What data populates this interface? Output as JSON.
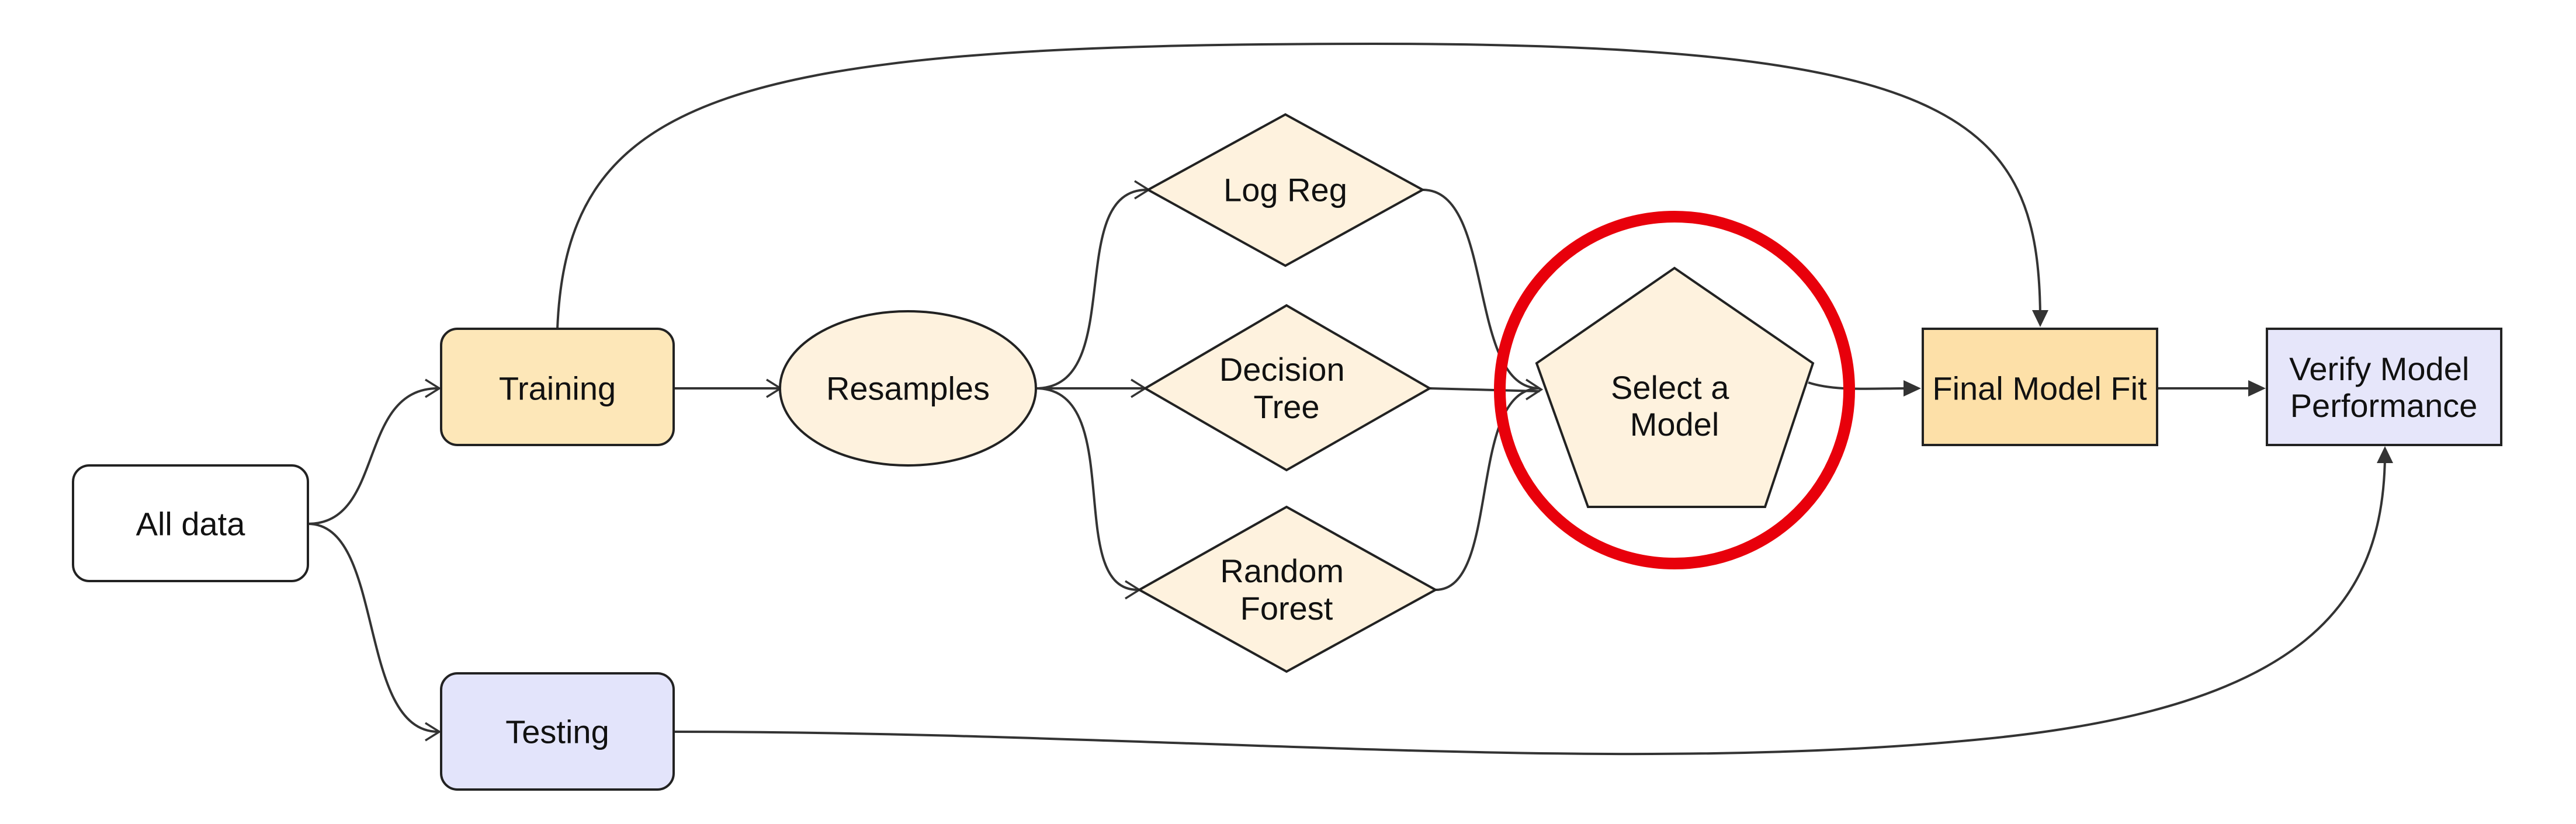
{
  "diagram": {
    "nodes": {
      "all_data": "All data",
      "training": "Training",
      "testing": "Testing",
      "resamples": "Resamples",
      "log_reg": "Log Reg",
      "decision_tree": [
        "Decision",
        "Tree"
      ],
      "random_forest": [
        "Random",
        "Forest"
      ],
      "select_model": [
        "Select a",
        "Model"
      ],
      "final_model_fit": "Final Model Fit",
      "verify_model": [
        "Verify Model",
        "Performance"
      ]
    },
    "colors": {
      "white_fill": "#ffffff",
      "training_fill": "#fde7b8",
      "testing_fill": "#e3e4fb",
      "light_fill": "#fef2de",
      "final_fit_fill": "#fde0a8",
      "verify_fill": "#e6e6fa",
      "edge": "#333333",
      "highlight_ring": "#e8000b"
    }
  }
}
